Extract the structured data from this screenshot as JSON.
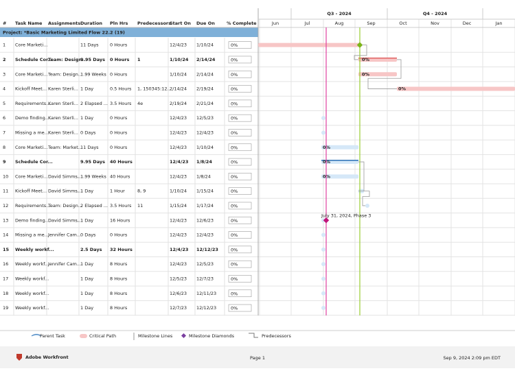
{
  "table": {
    "columns": [
      "#",
      "Task Name",
      "Assignments",
      "Duration",
      "Pln Hrs",
      "Predecessors",
      "Start On",
      "Due On",
      "% Complete"
    ],
    "project": "Project: *Basic Marketing Limited Flow 22.2 (19)",
    "rows": [
      {
        "num": "1",
        "name": "Core Marketi...",
        "duration": "11 Days",
        "hours": "0 Hours",
        "start": "12/4/23",
        "due": "1/10/24",
        "complete": "0%"
      },
      {
        "num": "2",
        "name": "Schedule Cor...",
        "assignments": "Team: Design...",
        "duration": "9.95 Days",
        "hours": "0 Hours",
        "predecessors": "1",
        "start": "1/10/24",
        "due": "2/14/24",
        "complete": "0%",
        "bold": true
      },
      {
        "num": "3",
        "name": "Core Marketi...",
        "assignments": "Team: Design...",
        "duration": "1.99 Weeks",
        "hours": "0 Hours",
        "start": "1/10/24",
        "due": "2/14/24",
        "complete": "0%"
      },
      {
        "num": "4",
        "name": "Kickoff Meet...",
        "assignments": "Karen Sterli...",
        "duration": "1 Day",
        "hours": "0.5 Hours",
        "predecessors": "1, 150345:12...",
        "start": "2/14/24",
        "due": "2/19/24",
        "complete": "0%"
      },
      {
        "num": "5",
        "name": "Requirements...",
        "assignments": "Karen Sterli...",
        "duration": "2 Elapsed ...",
        "hours": "3.5 Hours",
        "predecessors": "4e",
        "start": "2/19/24",
        "due": "2/21/24",
        "complete": "0%"
      },
      {
        "num": "6",
        "name": "Demo finding...",
        "assignments": "Karen Sterli...",
        "duration": "1 Day",
        "hours": "0 Hours",
        "start": "12/4/23",
        "due": "12/5/23",
        "complete": "0%"
      },
      {
        "num": "7",
        "name": "Missing a me...",
        "assignments": "Karen Sterli...",
        "duration": "0 Days",
        "hours": "0 Hours",
        "start": "12/4/23",
        "due": "12/4/23",
        "complete": "0%"
      },
      {
        "num": "8",
        "name": "Core Marketi...",
        "assignments": "Team: Market...",
        "duration": "11 Days",
        "hours": "0 Hours",
        "start": "12/4/23",
        "due": "1/10/24",
        "complete": "0%"
      },
      {
        "num": "9",
        "name": "Schedule Cor...",
        "duration": "9.95 Days",
        "hours": "40 Hours",
        "start": "12/4/23",
        "due": "1/8/24",
        "complete": "0%",
        "bold": true
      },
      {
        "num": "10",
        "name": "Core Marketi...",
        "assignments": "David Simms,...",
        "duration": "1.99 Weeks",
        "hours": "40 Hours",
        "start": "12/4/23",
        "due": "1/8/24",
        "complete": "0%"
      },
      {
        "num": "11",
        "name": "Kickoff Meet...",
        "assignments": "David Simms,...",
        "duration": "1 Day",
        "hours": "1 Hour",
        "predecessors": "8, 9",
        "start": "1/10/24",
        "due": "1/15/24",
        "complete": "0%"
      },
      {
        "num": "12",
        "name": "Requirements...",
        "assignments": "Team: Design...",
        "duration": "2 Elapsed ...",
        "hours": "3.5 Hours",
        "predecessors": "11",
        "start": "1/15/24",
        "due": "1/17/24",
        "complete": "0%"
      },
      {
        "num": "13",
        "name": "Demo finding...",
        "assignments": "David Simms,...",
        "duration": "1 Day",
        "hours": "16 Hours",
        "start": "12/4/23",
        "due": "12/6/23",
        "complete": "0%"
      },
      {
        "num": "14",
        "name": "Missing a me...",
        "assignments": "Jennifer Cam...",
        "duration": "0 Days",
        "hours": "0 Hours",
        "start": "12/4/23",
        "due": "12/4/23",
        "complete": "0%"
      },
      {
        "num": "15",
        "name": "Weekly workf...",
        "duration": "2.5 Days",
        "hours": "32 Hours",
        "start": "12/4/23",
        "due": "12/12/23",
        "complete": "0%",
        "bold": true
      },
      {
        "num": "16",
        "name": "Weekly workf...",
        "assignments": "Jennifer Cam...",
        "duration": "1 Day",
        "hours": "8 Hours",
        "start": "12/4/23",
        "due": "12/5/23",
        "complete": "0%"
      },
      {
        "num": "17",
        "name": "Weekly workf...",
        "duration": "1 Day",
        "hours": "8 Hours",
        "start": "12/5/23",
        "due": "12/7/23",
        "complete": "0%"
      },
      {
        "num": "18",
        "name": "Weekly workf...",
        "duration": "1 Day",
        "hours": "8 Hours",
        "start": "12/6/23",
        "due": "12/11/23",
        "complete": "0%"
      },
      {
        "num": "19",
        "name": "Weekly workf...",
        "duration": "1 Day",
        "hours": "8 Hours",
        "start": "12/7/23",
        "due": "12/12/23",
        "complete": "0%"
      }
    ]
  },
  "gantt": {
    "quarters": [
      "Q3 - 2024",
      "Q4 - 2024"
    ],
    "months": [
      "Jun",
      "Jul",
      "Aug",
      "Sep",
      "Oct",
      "Nov",
      "Dec",
      "Jan"
    ],
    "bar_labels": [
      "0%",
      "0%",
      "0%",
      "0%",
      "0%",
      "0%"
    ],
    "milestone_label": "July 31, 2024, Phase 3"
  },
  "legend": [
    "Parent Task",
    "Critical Path",
    "Milestone Lines",
    "Milestone Diamonds",
    "Predecessors"
  ],
  "footer": {
    "brand": "Adobe Workfront",
    "page": "Page 1",
    "timestamp": "Sep 9, 2024 2:09 pm EDT"
  }
}
